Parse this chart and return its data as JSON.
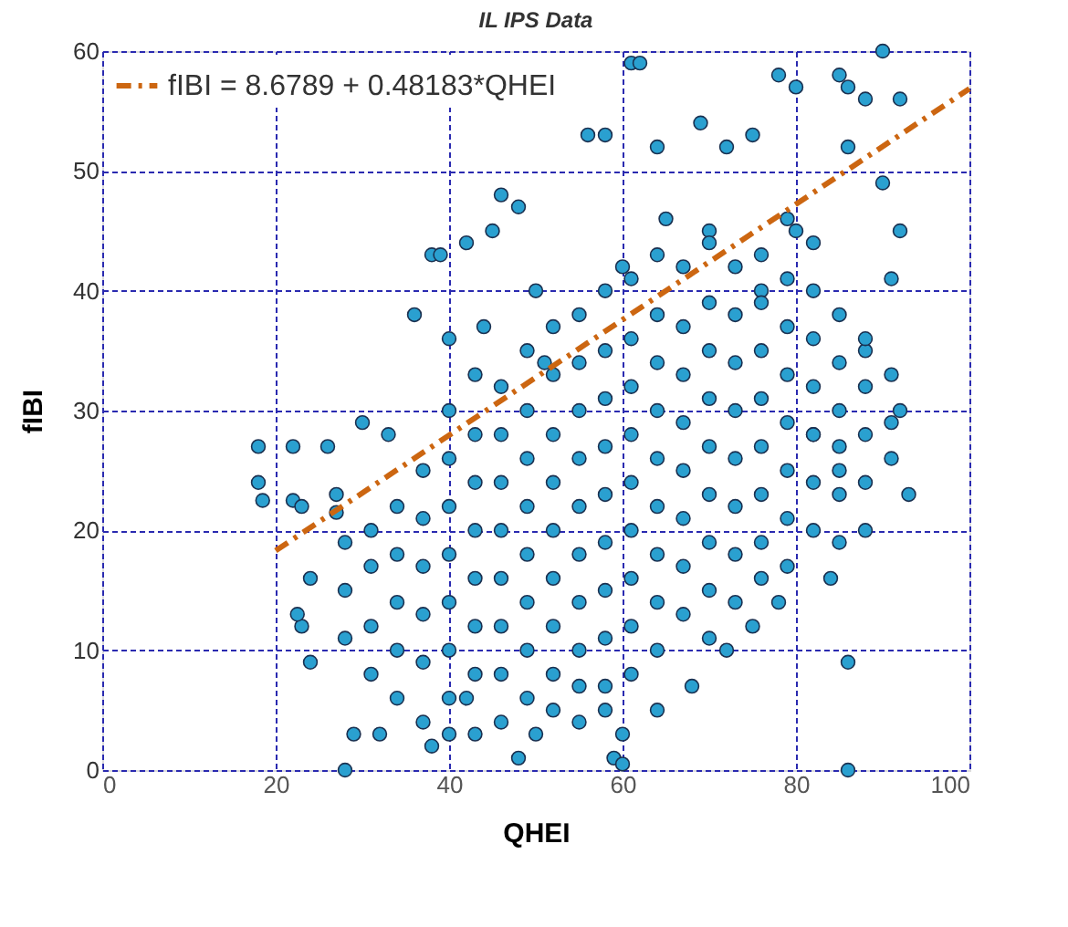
{
  "chart_data": {
    "type": "scatter",
    "title": "IL IPS Data",
    "xlabel": "QHEI",
    "ylabel": "fIBI",
    "xlim": [
      0,
      100
    ],
    "ylim": [
      0,
      60
    ],
    "xticks": [
      0,
      20,
      40,
      60,
      80,
      100
    ],
    "yticks": [
      0,
      10,
      20,
      30,
      40,
      50,
      60
    ],
    "grid": true,
    "legend": "top left",
    "marker": "circle",
    "series": [
      {
        "color": "#2aa0d0",
        "x": [
          18,
          18,
          18.5,
          22,
          22,
          23,
          24,
          23,
          22.5,
          24,
          26,
          27,
          28,
          29,
          27,
          30,
          33,
          36,
          38,
          39,
          42,
          44,
          40,
          45,
          46,
          48,
          50,
          51,
          56,
          58,
          61,
          62,
          64,
          69,
          72,
          75,
          78,
          80,
          85,
          86,
          90,
          88,
          92,
          92,
          90,
          86,
          91,
          93,
          88,
          92,
          86,
          86,
          59,
          60,
          60,
          32,
          38,
          40,
          42,
          48,
          50,
          55,
          58,
          64,
          68,
          72,
          75,
          78,
          84,
          88,
          85,
          82,
          80,
          76,
          70,
          65,
          60,
          28,
          28,
          28,
          31,
          31,
          31,
          31,
          34,
          34,
          34,
          34,
          34,
          37,
          37,
          37,
          37,
          37,
          37,
          40,
          40,
          40,
          40,
          40,
          40,
          40,
          43,
          43,
          43,
          43,
          43,
          43,
          43,
          43,
          46,
          46,
          46,
          46,
          46,
          46,
          46,
          46,
          49,
          49,
          49,
          49,
          49,
          49,
          49,
          49,
          52,
          52,
          52,
          52,
          52,
          52,
          52,
          52,
          52,
          55,
          55,
          55,
          55,
          55,
          55,
          55,
          55,
          55,
          58,
          58,
          58,
          58,
          58,
          58,
          58,
          58,
          58,
          61,
          61,
          61,
          61,
          61,
          61,
          61,
          61,
          61,
          64,
          64,
          64,
          64,
          64,
          64,
          64,
          64,
          64,
          67,
          67,
          67,
          67,
          67,
          67,
          67,
          67,
          70,
          70,
          70,
          70,
          70,
          70,
          70,
          70,
          70,
          73,
          73,
          73,
          73,
          73,
          73,
          73,
          73,
          76,
          76,
          76,
          76,
          76,
          76,
          76,
          76,
          79,
          79,
          79,
          79,
          79,
          79,
          79,
          79,
          82,
          82,
          82,
          82,
          82,
          82,
          82,
          85,
          85,
          85,
          85,
          85,
          85,
          88,
          88,
          88,
          88,
          91,
          91,
          91
        ],
        "values": [
          27,
          24,
          22.5,
          27,
          22.5,
          22,
          16,
          12,
          13,
          9,
          27,
          23,
          0,
          3,
          21.5,
          29,
          28,
          38,
          43,
          43,
          44,
          37,
          36,
          45,
          48,
          47,
          40,
          34,
          53,
          53,
          59,
          59,
          52,
          54,
          52,
          53,
          58,
          57,
          58,
          57,
          60,
          56,
          56,
          45,
          49,
          52,
          41,
          23,
          35,
          30,
          9,
          0,
          1,
          3,
          0.5,
          3,
          2,
          3,
          6,
          1,
          3,
          4,
          5,
          5,
          7,
          10,
          12,
          14,
          16,
          20,
          25,
          28,
          45,
          40,
          45,
          46,
          42,
          19,
          15,
          11,
          20,
          17,
          12,
          8,
          22,
          18,
          14,
          10,
          6,
          25,
          21,
          17,
          13,
          9,
          4,
          30,
          26,
          22,
          18,
          14,
          10,
          6,
          33,
          28,
          24,
          20,
          16,
          12,
          8,
          3,
          32,
          28,
          24,
          20,
          16,
          12,
          8,
          4,
          35,
          30,
          26,
          22,
          18,
          14,
          10,
          6,
          37,
          33,
          28,
          24,
          20,
          16,
          12,
          8,
          5,
          38,
          34,
          30,
          26,
          22,
          18,
          14,
          10,
          7,
          40,
          35,
          31,
          27,
          23,
          19,
          15,
          11,
          7,
          41,
          36,
          32,
          28,
          24,
          20,
          16,
          12,
          8,
          43,
          38,
          34,
          30,
          26,
          22,
          18,
          14,
          10,
          42,
          37,
          33,
          29,
          25,
          21,
          17,
          13,
          44,
          39,
          35,
          31,
          27,
          23,
          19,
          15,
          11,
          42,
          38,
          34,
          30,
          26,
          22,
          18,
          14,
          43,
          39,
          35,
          31,
          27,
          23,
          19,
          16,
          46,
          41,
          37,
          33,
          29,
          25,
          21,
          17,
          44,
          40,
          36,
          32,
          28,
          24,
          20,
          38,
          34,
          30,
          27,
          23,
          19,
          36,
          32,
          28,
          24,
          33,
          29,
          26
        ]
      },
      {
        "type": "line",
        "name": "fIBI = 8.6789 + 0.48183*QHEI",
        "color": "#cc6611",
        "line_style": "dashed",
        "marker": "none",
        "x": [
          20,
          100
        ],
        "values": [
          18.31,
          56.86
        ]
      }
    ]
  }
}
